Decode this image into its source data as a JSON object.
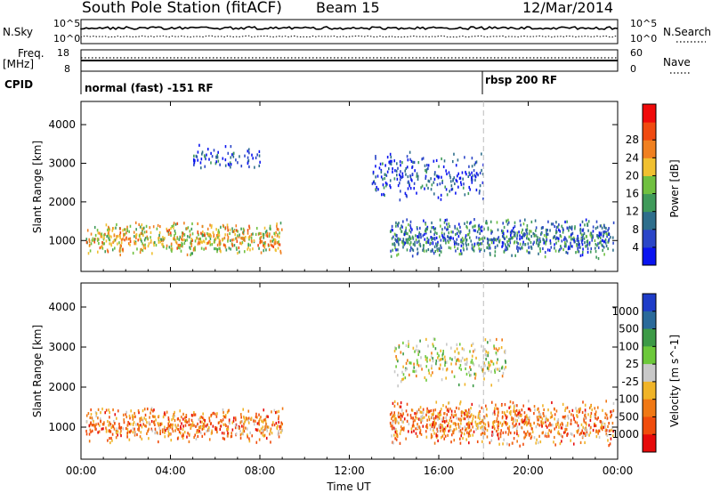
{
  "header": {
    "title": "South Pole Station (fitACF)",
    "beam": "Beam 15",
    "date": "12/Mar/2014"
  },
  "strip_labels": {
    "nsky": "N.Sky",
    "nsearch": "N.Search",
    "freq_line1": "Freq.",
    "freq_line2": "[MHz]",
    "nave": "Nave",
    "cpid": "CPID",
    "noise_left_top": "10^5",
    "noise_left_bottom": "10^0",
    "noise_right_top": "10^5",
    "noise_right_bottom": "10^0",
    "freq_left_top": "18",
    "freq_left_bottom": "8",
    "nave_right_top": "60",
    "nave_right_bottom": "0"
  },
  "modes": [
    {
      "label": "normal (fast) -151 RF",
      "start_hour": 0
    },
    {
      "label": "rbsp 200 RF",
      "start_hour": 18
    }
  ],
  "chart_data": [
    {
      "type": "heatmap",
      "name": "power",
      "title": "",
      "xlabel": "",
      "ylabel": "Slant Range [km]",
      "xlim": [
        0,
        24
      ],
      "ylim": [
        200,
        4600
      ],
      "xticks": [
        0,
        4,
        8,
        12,
        16,
        20,
        24
      ],
      "yticks": [
        1000,
        2000,
        3000,
        4000
      ],
      "colorbar": {
        "label": "Power [dB]",
        "ticks": [
          "4",
          "8",
          "12",
          "16",
          "20",
          "24",
          "28"
        ],
        "colors": [
          "#0a14f0",
          "#2b46c8",
          "#2e6e8c",
          "#3f9a5a",
          "#70c040",
          "#f0c030",
          "#f08020",
          "#f04a10",
          "#f00a0a"
        ]
      },
      "features": [
        {
          "description": "band",
          "t_start": 0.2,
          "t_end": 9.0,
          "range_lo": 600,
          "range_hi": 1500,
          "level": "24"
        },
        {
          "description": "band",
          "t_start": 13.8,
          "t_end": 23.8,
          "range_lo": 500,
          "range_hi": 1600,
          "level": "12"
        },
        {
          "description": "patch",
          "t_start": 5.0,
          "t_end": 8.0,
          "range_lo": 2800,
          "range_hi": 3500,
          "level": "8"
        },
        {
          "description": "patch",
          "t_start": 13.0,
          "t_end": 18.0,
          "range_lo": 2000,
          "range_hi": 3300,
          "level": "8"
        }
      ]
    },
    {
      "type": "heatmap",
      "name": "velocity",
      "title": "",
      "xlabel": "Time UT",
      "ylabel": "Slant Range [km]",
      "xlim": [
        0,
        24
      ],
      "ylim": [
        200,
        4600
      ],
      "xticks": [
        0,
        4,
        8,
        12,
        16,
        20,
        24
      ],
      "xticklabels": [
        "00:00",
        "04:00",
        "08:00",
        "12:00",
        "16:00",
        "20:00",
        "00:00"
      ],
      "yticks": [
        1000,
        2000,
        3000,
        4000
      ],
      "colorbar": {
        "label": "Velocity [m s^-1]",
        "ticks": [
          "1000",
          "500",
          "100",
          "25",
          "-25",
          "-100",
          "-500",
          "-1000"
        ],
        "colors": [
          "#1e3cc8",
          "#2a6a9a",
          "#3c9a46",
          "#6cc83a",
          "#c8c8c8",
          "#f0b428",
          "#f07814",
          "#f04c0c",
          "#e60a0a"
        ]
      },
      "features": [
        {
          "description": "band",
          "t_start": 0.2,
          "t_end": 9.0,
          "range_lo": 600,
          "range_hi": 1500,
          "level": "-500"
        },
        {
          "description": "band",
          "t_start": 13.8,
          "t_end": 23.8,
          "range_lo": 500,
          "range_hi": 1700,
          "level": "-500"
        },
        {
          "description": "patch",
          "t_start": 14.0,
          "t_end": 19.0,
          "range_lo": 2000,
          "range_hi": 3300,
          "level": "-25"
        }
      ]
    }
  ]
}
